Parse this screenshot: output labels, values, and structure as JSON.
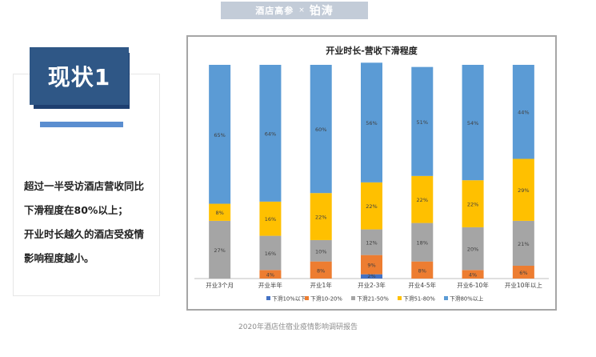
{
  "header": {
    "brand_left": "酒店高参",
    "times_symbol": "×",
    "brand_right": "铂涛"
  },
  "section": {
    "badge": "现状1",
    "desc_lines": [
      "超过一半受访酒店营收同比",
      "下滑程度在80%以上；",
      "开业时长越久的酒店受疫情",
      "影响程度越小。"
    ]
  },
  "footer": {
    "source": "2020年酒店住宿业疫情影响调研报告"
  },
  "colors": {
    "badge": "#2f5786",
    "accent": "#5b8ed0",
    "series": [
      "#4472c4",
      "#ed7d31",
      "#a5a5a5",
      "#ffc000",
      "#5b9bd5"
    ]
  },
  "chart_data": {
    "type": "bar",
    "stacked": true,
    "percent": true,
    "title": "开业时长-营收下滑程度",
    "categories": [
      "开业3个月",
      "开业半年",
      "开业1年",
      "开业2-3年",
      "开业4-5年",
      "开业6-10年",
      "开业10年以上"
    ],
    "series": [
      {
        "name": "下滑10%以下",
        "values": [
          0,
          0,
          0,
          2,
          0,
          0,
          0
        ],
        "labels": [
          "0%",
          "0%",
          "0%",
          "2%",
          "0%",
          "0%",
          "0%"
        ]
      },
      {
        "name": "下滑10-20%",
        "values": [
          0,
          4,
          8,
          9,
          8,
          4,
          6
        ],
        "labels": [
          "0%",
          "4%",
          "8%",
          "9%",
          "8%",
          "4%",
          "6%"
        ]
      },
      {
        "name": "下滑21-50%",
        "values": [
          27,
          16,
          10,
          12,
          18,
          20,
          21
        ],
        "labels": [
          "27%",
          "16%",
          "10%",
          "12%",
          "18%",
          "20%",
          "21%"
        ]
      },
      {
        "name": "下滑51-80%",
        "values": [
          8,
          16,
          22,
          22,
          22,
          22,
          29
        ],
        "labels": [
          "8%",
          "16%",
          "22%",
          "22%",
          "22%",
          "22%",
          "29%"
        ]
      },
      {
        "name": "下滑80%以上",
        "values": [
          65,
          64,
          60,
          56,
          51,
          54,
          44
        ],
        "labels": [
          "65%",
          "64%",
          "60%",
          "56%",
          "51%",
          "54%",
          "44%"
        ]
      }
    ],
    "ylim": [
      0,
      100
    ],
    "grid": false,
    "legend": "bottom"
  }
}
